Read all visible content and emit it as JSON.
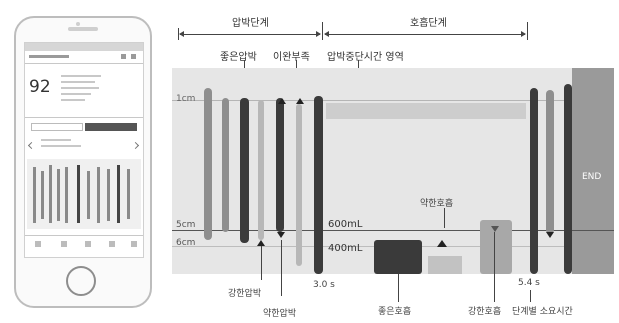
{
  "phone": {
    "score": "92",
    "icons": [
      "phone-screen-icon"
    ]
  },
  "phases": {
    "compression": "압박단계",
    "breathing": "호흡단계"
  },
  "labels": {
    "good_compression": "좋은압박",
    "incomplete_release": "이완부족",
    "compression_pause_area": "압박중단시간 영역",
    "strong_compression": "강한압박",
    "weak_compression": "약한압박",
    "good_breath": "좋은호흡",
    "weak_breath": "약한호흡",
    "strong_breath": "강한호흡",
    "phase_time": "단계별 소요시간"
  },
  "axis": {
    "depth_1cm": "1cm",
    "depth_5cm": "5cm",
    "depth_6cm": "6cm",
    "vol_600": "600mL",
    "vol_400": "400mL",
    "time_30": "3.0 s",
    "time_54": "5.4 s"
  },
  "end_label": "END",
  "colors": {
    "dark_bar": "#3b3b3b",
    "mid_bar": "#8e8e8e",
    "light_bar": "#b7b7b7",
    "panel_bg": "#e3e3e3",
    "end_panel": "#9a9a9a",
    "good_breath_box": "#3a3a3a",
    "weak_breath_box": "#c2c2c2",
    "strong_breath_box": "#a8a8a8"
  }
}
